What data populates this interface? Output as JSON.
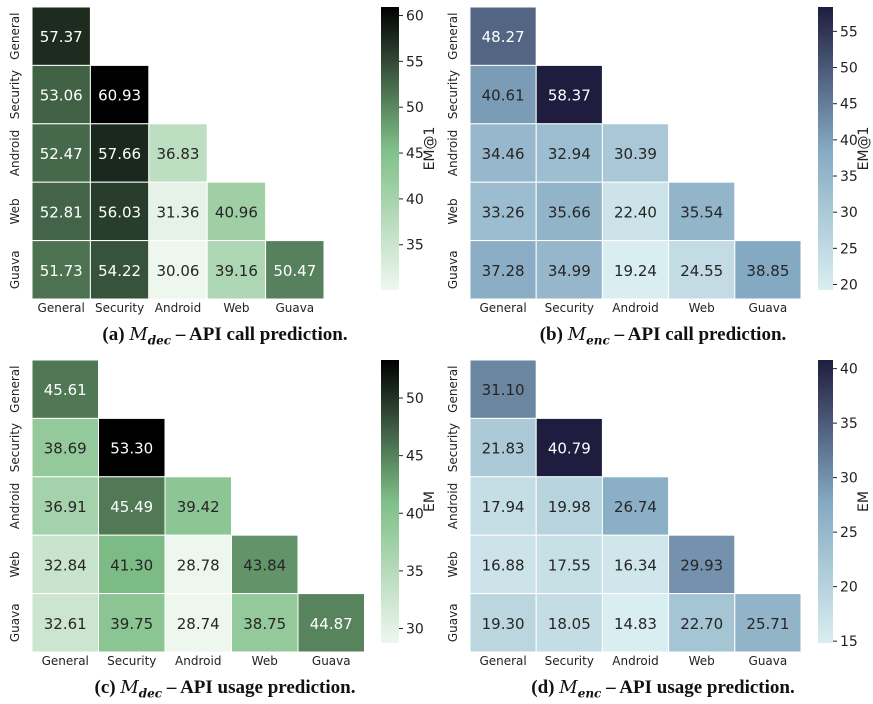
{
  "figures": [
    {
      "caption": {
        "label": "(a)",
        "model": "M",
        "subscript": "dec",
        "text": "– API call prediction."
      },
      "colorbar_label": "EM@1"
    },
    {
      "caption": {
        "label": "(b)",
        "model": "M",
        "subscript": "enc",
        "text": "– API call prediction."
      },
      "colorbar_label": "EM@1"
    },
    {
      "caption": {
        "label": "(c)",
        "model": "M",
        "subscript": "dec",
        "text": "– API usage prediction."
      },
      "colorbar_label": "EM"
    },
    {
      "caption": {
        "label": "(d)",
        "model": "M",
        "subscript": "enc",
        "text": "– API usage prediction."
      },
      "colorbar_label": "EM"
    }
  ],
  "chart_data": [
    {
      "type": "heatmap",
      "colormap": "greens",
      "colors": {
        "low": "#eef7ee",
        "mid": "#7fbf88",
        "high": "#000000"
      },
      "row_labels": [
        "General",
        "Security",
        "Android",
        "Web",
        "Guava"
      ],
      "col_labels": [
        "General",
        "Security",
        "Android",
        "Web",
        "Guava"
      ],
      "values": [
        [
          57.37,
          null,
          null,
          null,
          null
        ],
        [
          53.06,
          60.93,
          null,
          null,
          null
        ],
        [
          52.47,
          57.66,
          36.83,
          null,
          null
        ],
        [
          52.81,
          56.03,
          31.36,
          40.96,
          null
        ],
        [
          51.73,
          54.22,
          30.06,
          39.16,
          50.47
        ]
      ],
      "value_labels": [
        [
          "57.37",
          "",
          "",
          "",
          ""
        ],
        [
          "53.06",
          "60.93",
          "",
          "",
          ""
        ],
        [
          "52.47",
          "57.66",
          "36.83",
          "",
          ""
        ],
        [
          "52.81",
          "56.03",
          "31.36",
          "40.96",
          ""
        ],
        [
          "51.73",
          "54.22",
          "30.06",
          "39.16",
          "50.47"
        ]
      ],
      "vmin": 30.06,
      "vmax": 60.93,
      "colorbar_ticks": [
        35,
        40,
        45,
        50,
        55,
        60
      ],
      "colorbar_tick_labels": [
        "35",
        "40",
        "45",
        "50",
        "55",
        "60"
      ],
      "colorbar_label": "EM@1"
    },
    {
      "type": "heatmap",
      "colormap": "bone_r",
      "colors": {
        "low": "#d9eef0",
        "mid": "#84a9c2",
        "high": "#1f1d3f"
      },
      "row_labels": [
        "General",
        "Security",
        "Android",
        "Web",
        "Guava"
      ],
      "col_labels": [
        "General",
        "Security",
        "Android",
        "Web",
        "Guava"
      ],
      "values": [
        [
          48.27,
          null,
          null,
          null,
          null
        ],
        [
          40.61,
          58.37,
          null,
          null,
          null
        ],
        [
          34.46,
          32.94,
          30.39,
          null,
          null
        ],
        [
          33.26,
          35.66,
          22.4,
          35.54,
          null
        ],
        [
          37.28,
          34.99,
          19.24,
          24.55,
          38.85
        ]
      ],
      "value_labels": [
        [
          "48.27",
          "",
          "",
          "",
          ""
        ],
        [
          "40.61",
          "58.37",
          "",
          "",
          ""
        ],
        [
          "34.46",
          "32.94",
          "30.39",
          "",
          ""
        ],
        [
          "33.26",
          "35.66",
          "22.40",
          "35.54",
          ""
        ],
        [
          "37.28",
          "34.99",
          "19.24",
          "24.55",
          "38.85"
        ]
      ],
      "vmin": 19.24,
      "vmax": 58.37,
      "colorbar_ticks": [
        20,
        25,
        30,
        35,
        40,
        45,
        50,
        55
      ],
      "colorbar_tick_labels": [
        "20",
        "25",
        "30",
        "35",
        "40",
        "45",
        "50",
        "55"
      ],
      "colorbar_label": "EM@1"
    },
    {
      "type": "heatmap",
      "colormap": "greens",
      "colors": {
        "low": "#eef7ee",
        "mid": "#7fbf88",
        "high": "#000000"
      },
      "row_labels": [
        "General",
        "Security",
        "Android",
        "Web",
        "Guava"
      ],
      "col_labels": [
        "General",
        "Security",
        "Android",
        "Web",
        "Guava"
      ],
      "values": [
        [
          45.61,
          null,
          null,
          null,
          null
        ],
        [
          38.69,
          53.3,
          null,
          null,
          null
        ],
        [
          36.91,
          45.49,
          39.42,
          null,
          null
        ],
        [
          32.84,
          41.3,
          28.78,
          43.84,
          null
        ],
        [
          32.61,
          39.75,
          28.74,
          38.75,
          44.87
        ]
      ],
      "value_labels": [
        [
          "45.61",
          "",
          "",
          "",
          ""
        ],
        [
          "38.69",
          "53.30",
          "",
          "",
          ""
        ],
        [
          "36.91",
          "45.49",
          "39.42",
          "",
          ""
        ],
        [
          "32.84",
          "41.30",
          "28.78",
          "43.84",
          ""
        ],
        [
          "32.61",
          "39.75",
          "28.74",
          "38.75",
          "44.87"
        ]
      ],
      "vmin": 28.74,
      "vmax": 53.3,
      "colorbar_ticks": [
        30,
        35,
        40,
        45,
        50
      ],
      "colorbar_tick_labels": [
        "30",
        "35",
        "40",
        "45",
        "50"
      ],
      "colorbar_label": "EM"
    },
    {
      "type": "heatmap",
      "colormap": "bone_r",
      "colors": {
        "low": "#d9eef0",
        "mid": "#84a9c2",
        "high": "#1f1d3f"
      },
      "row_labels": [
        "General",
        "Security",
        "Android",
        "Web",
        "Guava"
      ],
      "col_labels": [
        "General",
        "Security",
        "Android",
        "Web",
        "Guava"
      ],
      "values": [
        [
          31.1,
          null,
          null,
          null,
          null
        ],
        [
          21.83,
          40.79,
          null,
          null,
          null
        ],
        [
          17.94,
          19.98,
          26.74,
          null,
          null
        ],
        [
          16.88,
          17.55,
          16.34,
          29.93,
          null
        ],
        [
          19.3,
          18.05,
          14.83,
          22.7,
          25.71
        ]
      ],
      "value_labels": [
        [
          "31.10",
          "",
          "",
          "",
          ""
        ],
        [
          "21.83",
          "40.79",
          "",
          "",
          ""
        ],
        [
          "17.94",
          "19.98",
          "26.74",
          "",
          ""
        ],
        [
          "16.88",
          "17.55",
          "16.34",
          "29.93",
          ""
        ],
        [
          "19.30",
          "18.05",
          "14.83",
          "22.70",
          "25.71"
        ]
      ],
      "vmin": 14.83,
      "vmax": 40.79,
      "colorbar_ticks": [
        15,
        20,
        25,
        30,
        35,
        40
      ],
      "colorbar_tick_labels": [
        "15",
        "20",
        "25",
        "30",
        "35",
        "40"
      ],
      "colorbar_label": "EM"
    }
  ]
}
